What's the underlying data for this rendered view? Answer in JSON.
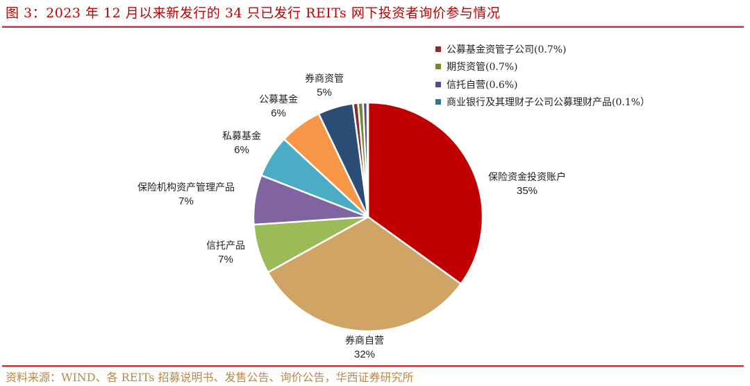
{
  "header": {
    "title": "图 3：2023 年 12 月以来新发行的 34 只已发行 REITs 网下投资者询价参与情况"
  },
  "footer": {
    "source": "资料来源：WIND、各 REITs 招募说明书、发售公告、询价公告，华西证券研究所"
  },
  "labels": {
    "insurance_account": {
      "name": "保险资金投资账户",
      "pct": "35%"
    },
    "broker_proprietary": {
      "name": "券商自营",
      "pct": "32%"
    },
    "trust_product": {
      "name": "信托产品",
      "pct": "7%"
    },
    "insurance_am_product": {
      "name": "保险机构资产管理产品",
      "pct": "7%"
    },
    "private_fund": {
      "name": "私募基金",
      "pct": "6%"
    },
    "public_fund": {
      "name": "公募基金",
      "pct": "6%"
    },
    "broker_am": {
      "name": "券商资管",
      "pct": "5%"
    }
  },
  "legend": [
    {
      "label": "公募基金资管子公司(0.7%)",
      "color": "#8b2c2c"
    },
    {
      "label": "期货资管(0.7%)",
      "color": "#6e8b2e"
    },
    {
      "label": "信托自营(0.6%)",
      "color": "#5b4a8b"
    },
    {
      "label": "商业银行及其理财子公司公募理财产品(0.1%）",
      "color": "#2e7a8a"
    }
  ],
  "chart_data": {
    "type": "pie",
    "title": "图 3：2023 年 12 月以来新发行的 34 只已发行 REITs 网下投资者询价参与情况",
    "start_angle": "12 o'clock, clockwise",
    "categories": [
      "保险资金投资账户",
      "券商自营",
      "信托产品",
      "保险机构资产管理产品",
      "私募基金",
      "公募基金",
      "券商资管",
      "公募基金资管子公司",
      "期货资管",
      "信托自营",
      "商业银行及其理财子公司公募理财产品"
    ],
    "values": [
      35,
      32,
      7,
      7,
      6,
      6,
      5,
      0.7,
      0.7,
      0.6,
      0.1
    ],
    "colors": [
      "#c00000",
      "#d0a465",
      "#9bbb59",
      "#8064a2",
      "#4bacc6",
      "#f79646",
      "#2c4d75",
      "#8b2c2c",
      "#6e8b2e",
      "#5b4a8b",
      "#2e7a8a"
    ],
    "legend_position": "top-right",
    "source": "资料来源：WIND、各 REITs 招募说明书、发售公告、询价公告，华西证券研究所"
  }
}
